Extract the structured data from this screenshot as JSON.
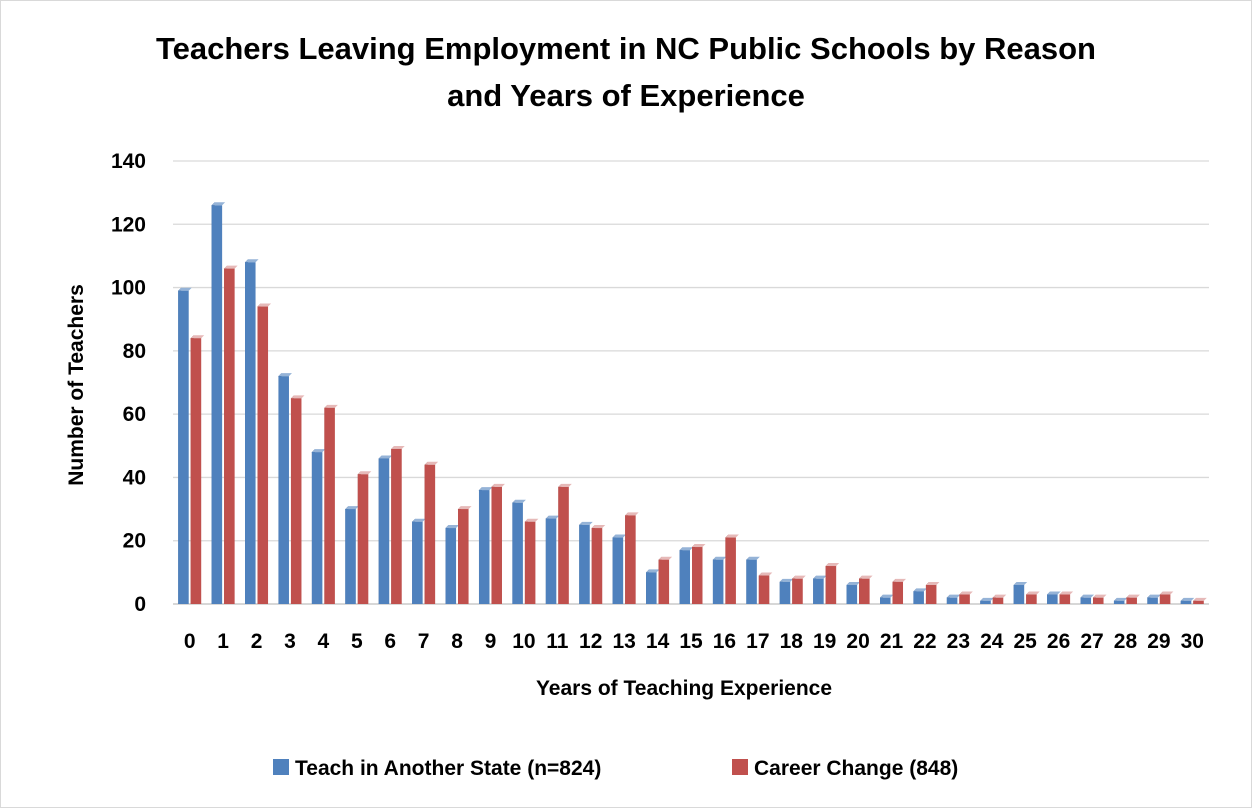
{
  "chart_data": {
    "type": "bar",
    "title_lines": [
      "Teachers Leaving Employment in NC Public Schools by Reason",
      "and Years of Experience"
    ],
    "xlabel": "Years of Teaching Experience",
    "ylabel": "Number of Teachers",
    "ylim": [
      0,
      140
    ],
    "yticks": [
      0,
      20,
      40,
      60,
      80,
      100,
      120,
      140
    ],
    "grid": true,
    "legend_position": "bottom",
    "categories": [
      "0",
      "1",
      "2",
      "3",
      "4",
      "5",
      "6",
      "7",
      "8",
      "9",
      "10",
      "11",
      "12",
      "13",
      "14",
      "15",
      "16",
      "17",
      "18",
      "19",
      "20",
      "21",
      "22",
      "23",
      "24",
      "25",
      "26",
      "27",
      "28",
      "29",
      "30"
    ],
    "series": [
      {
        "name": "Teach in Another State (n=824)",
        "color": "#4f81bd",
        "values": [
          99,
          126,
          108,
          72,
          48,
          30,
          46,
          26,
          24,
          36,
          32,
          27,
          25,
          21,
          10,
          17,
          14,
          14,
          7,
          8,
          6,
          2,
          4,
          2,
          1,
          6,
          3,
          2,
          1,
          2,
          1
        ]
      },
      {
        "name": "Career Change (848)",
        "color": "#c0504d",
        "values": [
          84,
          106,
          94,
          65,
          62,
          41,
          49,
          44,
          30,
          37,
          26,
          37,
          24,
          28,
          14,
          18,
          21,
          9,
          8,
          12,
          8,
          7,
          6,
          3,
          2,
          3,
          3,
          2,
          2,
          3,
          1
        ]
      }
    ]
  }
}
